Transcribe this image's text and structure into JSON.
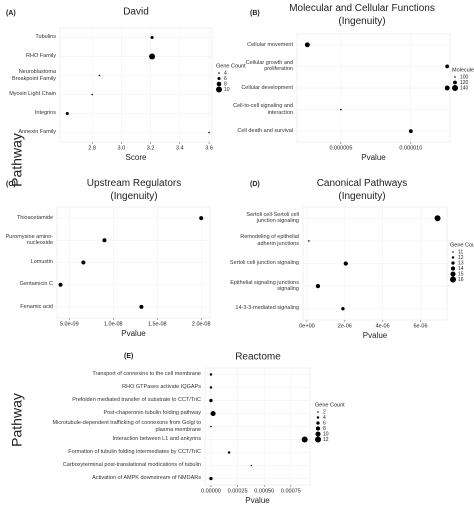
{
  "chart_data": [
    {
      "type": "scatter",
      "panel_label": "(A)",
      "title": "David",
      "xlabel": "Score",
      "ylabel": "Pathway",
      "categories": [
        "Tubulins",
        "RHO Family",
        "Neuroblastoma Breakpoint Family",
        "Myosin Light Chain",
        "Integrins",
        "Annexin Family"
      ],
      "x": [
        3.21,
        3.21,
        2.85,
        2.8,
        2.63,
        3.6
      ],
      "sizes": [
        6,
        10,
        4,
        4,
        6,
        4
      ],
      "color": "#000000",
      "xlim": [
        2.58,
        3.62
      ],
      "xticks": [
        2.8,
        {
          "value": 3,
          "label": "3.0"
        },
        3.2,
        3.4,
        3.6
      ],
      "grid": true,
      "size_legend": {
        "title": "Gene Count",
        "values": [
          4,
          6,
          8,
          10
        ]
      }
    },
    {
      "type": "scatter",
      "panel_label": "(B)",
      "title": "Molecular and Cellular Functions (Ingenuity)",
      "xlabel": "Pvalue",
      "categories": [
        "Cellular movement",
        "Cellular growth and proliferation",
        "Cellular development",
        "Cell-to-cell signaling and interaction",
        "Cell death and survival"
      ],
      "x": [
        2.6e-06,
        1.26e-05,
        1.26e-05,
        5e-06,
        1e-05
      ],
      "sizes": [
        130,
        120,
        130,
        100,
        120
      ],
      "color": "#000000",
      "xlim": [
        1.86e-06,
        1.28e-05
      ],
      "xticks": [
        5e-06,
        {
          "value": 1e-05,
          "label": "0.000010"
        }
      ],
      "grid": true,
      "size_legend": {
        "title": "Molecules",
        "values": [
          100,
          120,
          140
        ]
      }
    },
    {
      "type": "scatter",
      "panel_label": "(C)",
      "title": "Upstream Regulators (Ingenuity)",
      "xlabel": "Pvalue",
      "categories": [
        "Thioacetamide",
        "Puromysine amino-nucleoside",
        "Lomustin",
        "Gentamicin C",
        "Fenamic acid"
      ],
      "x": [
        2e-08,
        9e-09,
        6.6e-09,
        4e-09,
        1.32e-08
      ],
      "color": "#000000",
      "xlim": [
        3.6e-09,
        2.1e-08
      ],
      "xticks": [
        {
          "value": 5e-09,
          "label": "5.0e-09"
        },
        {
          "value": 1e-08,
          "label": "1.0e-08"
        },
        {
          "value": 1.5e-08,
          "label": "1.5e-08"
        },
        {
          "value": 2e-08,
          "label": "2.0e-08"
        }
      ],
      "grid": true
    },
    {
      "type": "scatter",
      "panel_label": "(D)",
      "title": "Canonical Pathways (Ingenuity)",
      "xlabel": "Pvalue",
      "categories": [
        "Sertoli cell-Sertoli cell junction signaling",
        "Remodeling of epithelial adherin junctions",
        "Sertoli cell junction signaling",
        "Epithelial signaling junctions signaling",
        "14-3-3-mediated signaling"
      ],
      "x": [
        6.9e-06,
        1e-07,
        2.05e-06,
        5.8e-07,
        1.9e-06
      ],
      "sizes": [
        16,
        11,
        14,
        14,
        13
      ],
      "color": "#000000",
      "xlim": [
        -2.1e-07,
        7.4e-06
      ],
      "xticks": [
        {
          "value": 0,
          "label": "0e+00"
        },
        {
          "value": 2e-06,
          "label": "2e-06"
        },
        {
          "value": 4e-06,
          "label": "4e-06"
        },
        {
          "value": 6e-06,
          "label": "6e-06"
        }
      ],
      "grid": true,
      "size_legend": {
        "title": "Gene Count",
        "values": [
          11,
          12,
          13,
          14,
          15,
          16
        ]
      }
    },
    {
      "type": "scatter",
      "panel_label": "(E)",
      "title": "Reactome",
      "xlabel": "Pvalue",
      "ylabel": "Pathway",
      "categories": [
        "Transport of connexins to the cell membrane",
        "RHO GTPases activate IQGAPs",
        "Prefolden mediated transfer of substrate to CCT/TriC",
        "Post-chaperonin tubulin folding pathway",
        "Microtubule-dependent trafficking of connexons from Golgi to plasma membrane",
        "Interaction between L1 and ankyrins",
        "Formation of tubulin folding intermediates by CCT/TriC",
        "Carboxyterminal post-translational modications of tubulin",
        "Activation of AMPK downstream of NMDARs"
      ],
      "x": [
        0,
        0,
        0,
        2e-05,
        0,
        0.00088,
        0.00017,
        0.00038,
        0
      ],
      "sizes": [
        4,
        4,
        6,
        10,
        2,
        12,
        4,
        2,
        6
      ],
      "color": "#000000",
      "xlim": [
        -5.6e-05,
        0.00093
      ],
      "xticks": [
        {
          "value": 0,
          "label": "0.00000"
        },
        {
          "value": 0.00025,
          "label": "0.00025"
        },
        {
          "value": 0.0005,
          "label": "0.00050"
        },
        {
          "value": 0.00075,
          "label": "0.00075"
        }
      ],
      "grid": true,
      "size_legend": {
        "title": "Gene Count",
        "values": [
          2,
          4,
          6,
          8,
          10,
          12
        ]
      }
    }
  ]
}
